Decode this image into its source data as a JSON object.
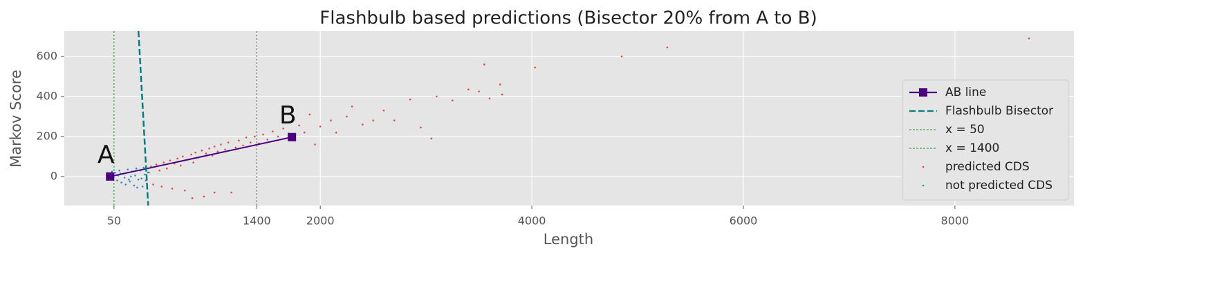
{
  "chart_data": {
    "type": "scatter",
    "title": "Flashbulb based predictions (Bisector 20% from A to B)",
    "x_label": "Length",
    "y_label": "Markov Score",
    "xlim": [
      -420,
      9125
    ],
    "ylim": [
      -145,
      727
    ],
    "xticks": [
      50,
      1400,
      2000,
      4000,
      6000,
      8000
    ],
    "yticks": [
      0,
      200,
      400,
      600
    ],
    "grid": true,
    "legend": "lower right",
    "series": [
      {
        "name": "AB line",
        "type": "line",
        "marker": "square",
        "linestyle": "solid",
        "color": "#4b0082",
        "x": [
          13,
          1732
        ],
        "values": [
          0,
          197
        ],
        "point_labels": [
          "A",
          "B"
        ]
      },
      {
        "name": "Flashbulb Bisector",
        "type": "line",
        "linestyle": "dashed",
        "color": "#008080",
        "x": [
          281,
          373
        ],
        "values": [
          727,
          -145
        ]
      },
      {
        "name": "x = 50",
        "type": "vline",
        "linestyle": "dashed",
        "color": "#228b22",
        "x": 50
      },
      {
        "name": "x = 1400",
        "type": "vline",
        "linestyle": "dashed",
        "color": "#228b22",
        "x": 1400
      },
      {
        "name": "predicted CDS",
        "type": "scatter",
        "color": "#e24a33",
        "x": [
          380,
          400,
          420,
          450,
          480,
          500,
          520,
          550,
          580,
          600,
          620,
          650,
          680,
          700,
          720,
          750,
          780,
          800,
          820,
          850,
          880,
          900,
          920,
          950,
          980,
          1000,
          1030,
          1060,
          1100,
          1130,
          1160,
          1200,
          1230,
          1270,
          1300,
          1340,
          1380,
          1420,
          1460,
          1500,
          1550,
          1600,
          1650,
          1700,
          1750,
          1800,
          1850,
          1900,
          1950,
          2000,
          2100,
          2150,
          2300,
          2250,
          2400,
          2500,
          2600,
          2700,
          2850,
          2950,
          3050,
          3100,
          3250,
          3400,
          3500,
          3550,
          3600,
          3700,
          3720,
          4030,
          4850,
          5280,
          8700,
          790,
          1000
        ],
        "values": [
          20,
          50,
          -40,
          60,
          30,
          -50,
          70,
          40,
          80,
          -60,
          65,
          90,
          55,
          100,
          -70,
          85,
          110,
          70,
          120,
          95,
          130,
          -100,
          115,
          140,
          105,
          150,
          125,
          160,
          135,
          170,
          -80,
          145,
          180,
          155,
          195,
          170,
          200,
          165,
          210,
          185,
          225,
          200,
          240,
          215,
          180,
          255,
          220,
          310,
          160,
          250,
          280,
          220,
          350,
          300,
          260,
          280,
          330,
          280,
          385,
          245,
          190,
          400,
          380,
          435,
          425,
          560,
          390,
          460,
          410,
          545,
          600,
          645,
          690,
          -108,
          -80
        ]
      },
      {
        "name": "not predicted CDS",
        "type": "scatter",
        "color": "#348abd",
        "x": [
          20,
          40,
          60,
          80,
          100,
          120,
          140,
          160,
          180,
          200,
          220,
          240,
          260,
          280,
          300,
          320,
          340,
          360,
          370,
          30,
          90,
          150,
          210,
          270,
          330,
          110,
          190,
          250,
          310,
          350
        ],
        "values": [
          10,
          -10,
          20,
          -20,
          30,
          -30,
          15,
          -40,
          35,
          -25,
          25,
          -45,
          40,
          -15,
          30,
          -50,
          10,
          -35,
          20,
          25,
          5,
          -5,
          0,
          -55,
          45,
          15,
          -15,
          5,
          -10,
          -20
        ]
      }
    ]
  }
}
